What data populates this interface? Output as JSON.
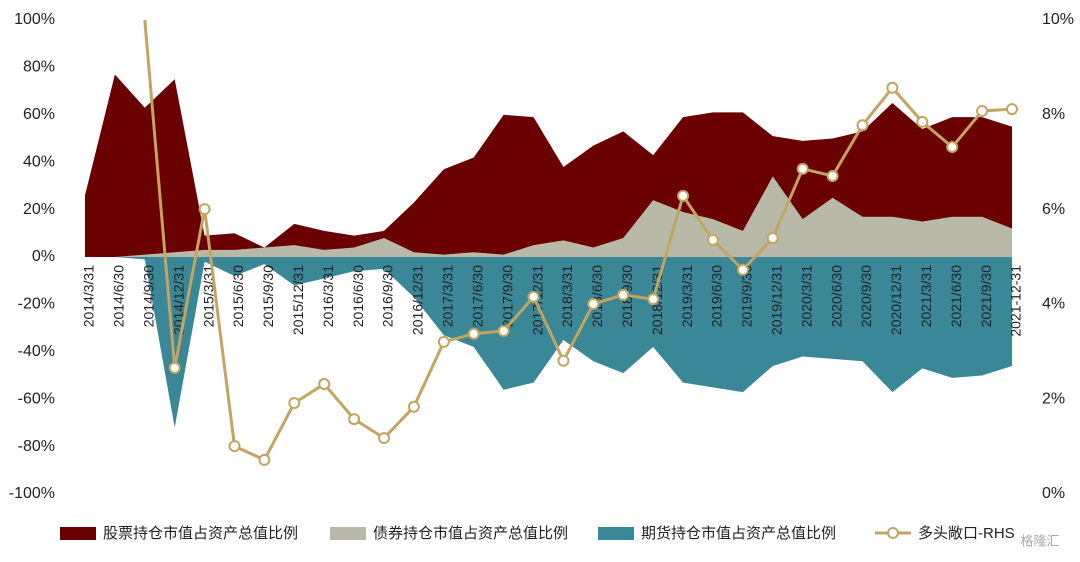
{
  "chart_data": {
    "type": "area",
    "categories": [
      "2014/3/31",
      "2014/6/30",
      "2014/9/30",
      "2014/12/31",
      "2015/3/31",
      "2015/6/30",
      "2015/9/30",
      "2015/12/31",
      "2016/3/31",
      "2016/6/30",
      "2016/9/30",
      "2016/12/31",
      "2017/3/31",
      "2017/6/30",
      "2017/9/30",
      "2017/12/31",
      "2018/3/31",
      "2018/6/30",
      "2018/9/30",
      "2018/12/31",
      "2019/3/31",
      "2019/6/30",
      "2019/9/30",
      "2019/12/31",
      "2020/3/31",
      "2020/6/30",
      "2020/9/30",
      "2020/12/31",
      "2021/3/31",
      "2021/6/30",
      "2021/9/30",
      "2021-12-31"
    ],
    "series": [
      {
        "name": "股票持仓市值占资产总值比例",
        "type": "area",
        "color": "#6b0000",
        "values": [
          26,
          77,
          63,
          75,
          9,
          10,
          4,
          14,
          11,
          9,
          11,
          23,
          37,
          42,
          60,
          59,
          38,
          47,
          53,
          43,
          59,
          61,
          61,
          51,
          49,
          50,
          53,
          65,
          54,
          59,
          59,
          55
        ]
      },
      {
        "name": "债券持仓市值占资产总值比例",
        "type": "area",
        "color": "#b9b9a9",
        "values": [
          0,
          0,
          1,
          2,
          3,
          3,
          4,
          5,
          3,
          4,
          8,
          2,
          1,
          2,
          1,
          5,
          7,
          4,
          8,
          24,
          19,
          16,
          11,
          34,
          16,
          25,
          17,
          17,
          15,
          17,
          17,
          12
        ]
      },
      {
        "name": "期货持仓市值占资产总值比例",
        "type": "area",
        "color": "#3a8797",
        "values": [
          0,
          0,
          -1,
          -72,
          -2,
          -8,
          -3,
          -12,
          -9,
          -6,
          -5,
          -17,
          -33,
          -38,
          -56,
          -53,
          -35,
          -44,
          -49,
          -38,
          -53,
          -55,
          -57,
          -46,
          -42,
          -43,
          -44,
          -57,
          -47,
          -51,
          -50,
          -46
        ]
      },
      {
        "name": "多头敞口-RHS",
        "type": "line",
        "axis": "y2",
        "color": "#c4a461",
        "values": [
          null,
          null,
          10,
          2.66,
          6.01,
          1.01,
          0.72,
          1.92,
          2.32,
          1.58,
          1.18,
          1.84,
          3.21,
          3.38,
          3.44,
          4.16,
          2.81,
          4.01,
          4.2,
          4.11,
          6.29,
          5.36,
          4.73,
          5.4,
          6.86,
          6.71,
          7.78,
          8.57,
          7.85,
          7.32,
          8.08,
          8.12
        ]
      }
    ],
    "ylim": [
      -100,
      100
    ],
    "yticks": [
      {
        "value": -100,
        "label": "-100%"
      },
      {
        "value": -80,
        "label": "-80%"
      },
      {
        "value": -60,
        "label": "-60%"
      },
      {
        "value": -40,
        "label": "-40%"
      },
      {
        "value": -20,
        "label": "-20%"
      },
      {
        "value": 0,
        "label": "0%"
      },
      {
        "value": 20,
        "label": "20%"
      },
      {
        "value": 40,
        "label": "40%"
      },
      {
        "value": 60,
        "label": "60%"
      },
      {
        "value": 80,
        "label": "80%"
      },
      {
        "value": 100,
        "label": "100%"
      }
    ],
    "y2lim": [
      0,
      10
    ],
    "y2ticks": [
      {
        "value": 0,
        "label": "0%"
      },
      {
        "value": 2,
        "label": "2%"
      },
      {
        "value": 4,
        "label": "4%"
      },
      {
        "value": 6,
        "label": "6%"
      },
      {
        "value": 8,
        "label": "8%"
      },
      {
        "value": 10,
        "label": "10%"
      }
    ],
    "watermark": "格隆汇"
  }
}
